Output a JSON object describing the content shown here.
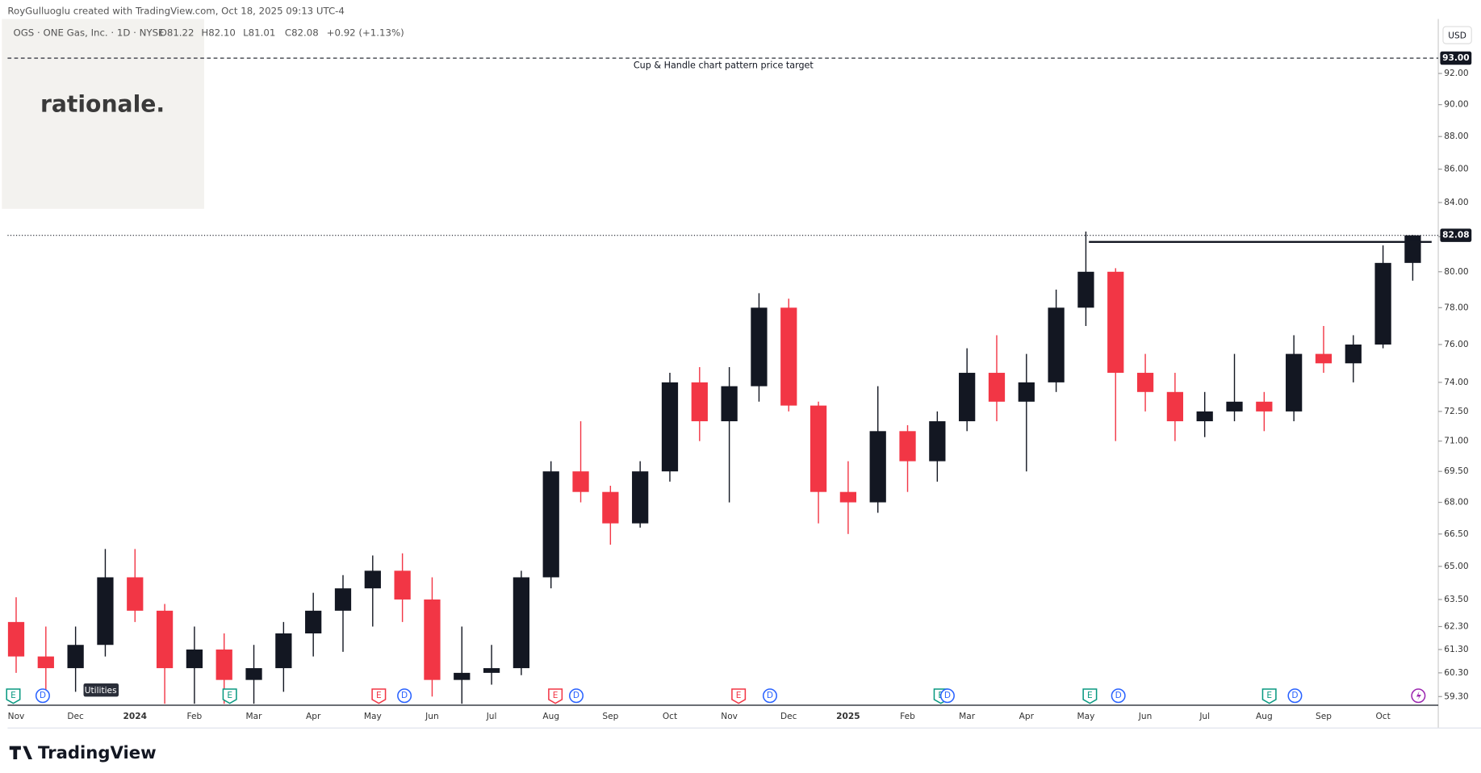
{
  "header": {
    "credit": "RoyGulluoglu created with TradingView.com, Oct 18, 2025 09:13 UTC-4",
    "symbol": "OGS · ONE Gas, Inc. · 1D · NYSE",
    "ohlc": [
      "O81.22",
      "H82.10",
      "L81.01",
      "C82.08",
      "+0.92 (+1.13%)"
    ],
    "currency": "USD",
    "logo": "rationale.",
    "brand": "TradingView",
    "sector_tag": "Utilities"
  },
  "chart_data": {
    "type": "candlestick",
    "categories": [
      "Nov",
      null,
      "Dec",
      null,
      "2024",
      null,
      "Feb",
      null,
      "Mar",
      null,
      "Apr",
      null,
      "May",
      null,
      "Jun",
      null,
      "Jul",
      null,
      "Aug",
      null,
      "Sep",
      null,
      "Oct",
      null,
      "Nov",
      null,
      "Dec",
      null,
      "2025",
      null,
      "Feb",
      null,
      "Mar",
      null,
      "Apr",
      null,
      "May",
      null,
      "Jun",
      null,
      "Jul",
      null,
      "Aug",
      null,
      "Sep",
      null,
      "Oct",
      null
    ],
    "open": [
      62.5,
      61.0,
      60.5,
      61.5,
      64.5,
      63.0,
      60.5,
      61.3,
      60.0,
      60.5,
      62.0,
      63.0,
      64.0,
      64.8,
      63.5,
      60.0,
      60.3,
      60.5,
      64.5,
      69.5,
      68.5,
      67.0,
      69.5,
      74.0,
      72.0,
      73.8,
      78.0,
      72.8,
      68.5,
      68.0,
      71.5,
      70.0,
      72.0,
      74.5,
      73.0,
      74.0,
      78.0,
      80.0,
      74.5,
      73.5,
      72.0,
      72.5,
      73.0,
      72.5,
      75.5,
      75.0,
      76.0,
      80.5
    ],
    "high": [
      63.6,
      62.3,
      62.3,
      65.8,
      65.8,
      63.3,
      62.3,
      62.0,
      61.5,
      62.5,
      63.8,
      64.6,
      65.5,
      65.6,
      64.5,
      62.3,
      61.5,
      64.8,
      70.0,
      72.0,
      68.8,
      70.0,
      74.5,
      74.8,
      74.8,
      78.8,
      78.5,
      73.0,
      70.0,
      73.8,
      71.8,
      72.5,
      75.8,
      76.5,
      75.5,
      79.0,
      82.3,
      80.2,
      75.5,
      74.5,
      73.5,
      75.5,
      73.5,
      76.5,
      77.0,
      76.5,
      81.5,
      82.1
    ],
    "low": [
      60.3,
      59.3,
      59.5,
      61.0,
      62.5,
      59.0,
      59.0,
      59.0,
      59.0,
      59.5,
      61.0,
      61.2,
      62.3,
      62.5,
      59.3,
      59.0,
      59.8,
      60.2,
      64.0,
      68.0,
      66.0,
      66.8,
      69.0,
      71.0,
      68.0,
      73.0,
      72.5,
      67.0,
      66.5,
      67.5,
      68.5,
      69.0,
      71.5,
      72.0,
      69.5,
      73.5,
      77.0,
      71.0,
      72.5,
      71.0,
      71.2,
      72.0,
      71.5,
      72.0,
      74.5,
      74.0,
      75.8,
      79.5
    ],
    "close": [
      61.0,
      60.5,
      61.5,
      64.5,
      63.0,
      60.5,
      61.3,
      60.0,
      60.5,
      62.0,
      63.0,
      64.0,
      64.8,
      63.5,
      60.0,
      60.3,
      60.5,
      64.5,
      69.5,
      68.5,
      67.0,
      69.5,
      74.0,
      72.0,
      73.8,
      78.0,
      72.8,
      68.5,
      68.0,
      71.5,
      70.0,
      72.0,
      74.5,
      73.0,
      74.0,
      78.0,
      80.0,
      74.5,
      73.5,
      72.0,
      72.5,
      73.0,
      72.5,
      75.5,
      75.0,
      76.0,
      80.5,
      82.08
    ],
    "up_color": "#131722",
    "down_color": "#f23645",
    "log_scale": true,
    "ylim": [
      58.94,
      95.6
    ],
    "yticks": [
      {
        "value": 59.3,
        "label": "59.30"
      },
      {
        "value": 60.3,
        "label": "60.30"
      },
      {
        "value": 61.3,
        "label": "61.30"
      },
      {
        "value": 62.3,
        "label": "62.30"
      },
      {
        "value": 63.5,
        "label": "63.50"
      },
      {
        "value": 65,
        "label": "65.00"
      },
      {
        "value": 66.5,
        "label": "66.50"
      },
      {
        "value": 68,
        "label": "68.00"
      },
      {
        "value": 69.5,
        "label": "69.50"
      },
      {
        "value": 71,
        "label": "71.00"
      },
      {
        "value": 72.5,
        "label": "72.50"
      },
      {
        "value": 74,
        "label": "74.00"
      },
      {
        "value": 76,
        "label": "76.00"
      },
      {
        "value": 78,
        "label": "78.00"
      },
      {
        "value": 80,
        "label": "80.00"
      },
      {
        "value": 82,
        "label": "82.00"
      },
      {
        "value": 84,
        "label": "84.00"
      },
      {
        "value": 86,
        "label": "86.00"
      },
      {
        "value": 88,
        "label": "88.00"
      },
      {
        "value": 90,
        "label": "90.00"
      },
      {
        "value": 92,
        "label": "92.00"
      }
    ],
    "target": {
      "value": 93,
      "label": "93.00",
      "text": "Cup & Handle chart pattern price target"
    },
    "last_price": {
      "value": 82.08,
      "label": "82.08"
    },
    "resistance": 81.7,
    "events": [
      "E",
      "D",
      "E",
      "E",
      "D",
      "E",
      "D",
      "E",
      "D",
      "E",
      "D",
      "E",
      "D",
      "E",
      "D"
    ]
  }
}
